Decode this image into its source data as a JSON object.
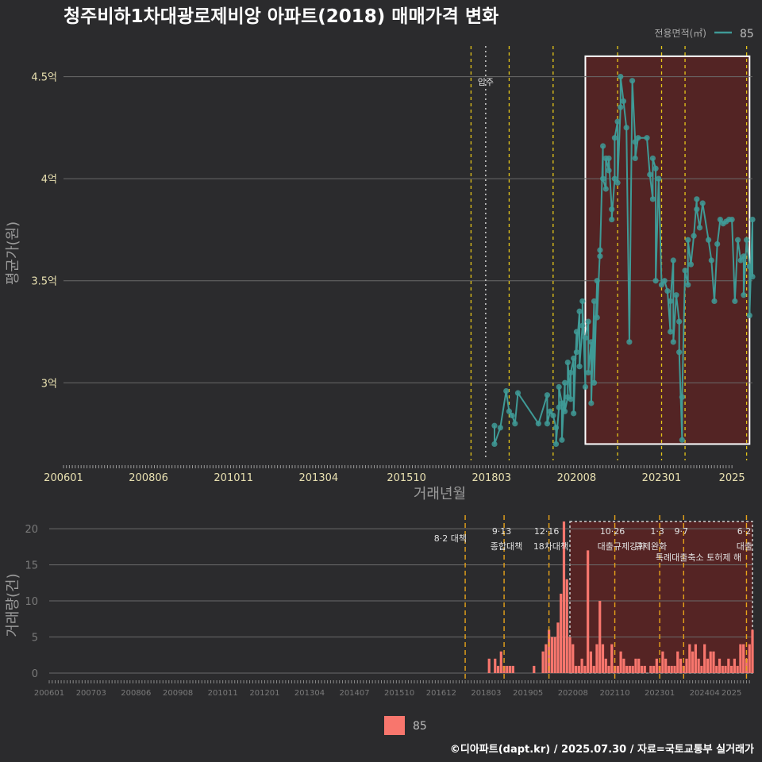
{
  "title": "청주비하1차대광로제비앙 아파트(2018) 매매가격 변화",
  "legend_top": {
    "label": "전용면적(㎡)",
    "value": "85"
  },
  "legend_bottom": {
    "value": "85"
  },
  "footer": "©디아파트(dapt.kr) / 2025.07.30 / 자료=국토교통부 실거래가",
  "colors": {
    "background": "#2b2b2d",
    "series": "#3f9a96",
    "bar": "#f8766d",
    "highlight_fill": "#5a2323",
    "policy_line": "#e6c619",
    "policy_line_bottom": "#e8a319"
  },
  "chart_data": [
    {
      "type": "line",
      "id": "price",
      "xlabel": "거래년월",
      "ylabel": "평균가(원)",
      "ylim": [
        2.62,
        4.65
      ],
      "y_ticks": [
        {
          "value": 3.0,
          "label": "3억"
        },
        {
          "value": 3.5,
          "label": "3.5억"
        },
        {
          "value": 4.0,
          "label": "4억"
        },
        {
          "value": 4.5,
          "label": "4.5억"
        }
      ],
      "x_ticks": [
        "200601",
        "200806",
        "201011",
        "201304",
        "201510",
        "201803",
        "202008",
        "202301",
        "2025"
      ],
      "x_range": [
        "2006-01",
        "2025-08"
      ],
      "policy_lines": [
        "2017-08",
        "2018-09",
        "2019-12",
        "2021-10",
        "2023-01",
        "2023-09",
        "2025-06"
      ],
      "move_in": {
        "date": "2018-01",
        "label": "입주"
      },
      "highlight": {
        "start": "2020-11",
        "end": "2025-07",
        "ymin": 2.7,
        "ymax": 4.6
      },
      "series": [
        {
          "name": "85",
          "points": [
            [
              "2018-04",
              2.79
            ],
            [
              "2018-04",
              2.7
            ],
            [
              "2018-06",
              2.78
            ],
            [
              "2018-08",
              2.96
            ],
            [
              "2018-09",
              2.86
            ],
            [
              "2018-10",
              2.84
            ],
            [
              "2018-11",
              2.8
            ],
            [
              "2018-12",
              2.95
            ],
            [
              "2019-07",
              2.8
            ],
            [
              "2019-10",
              2.94
            ],
            [
              "2019-10",
              2.8
            ],
            [
              "2019-11",
              2.86
            ],
            [
              "2019-12",
              2.84
            ],
            [
              "2020-01",
              2.78
            ],
            [
              "2020-01",
              2.7
            ],
            [
              "2020-02",
              2.88
            ],
            [
              "2020-02",
              2.98
            ],
            [
              "2020-03",
              2.9
            ],
            [
              "2020-03",
              2.72
            ],
            [
              "2020-04",
              3.0
            ],
            [
              "2020-04",
              2.86
            ],
            [
              "2020-05",
              2.93
            ],
            [
              "2020-05",
              3.1
            ],
            [
              "2020-06",
              2.92
            ],
            [
              "2020-06",
              3.05
            ],
            [
              "2020-07",
              3.12
            ],
            [
              "2020-07",
              2.85
            ],
            [
              "2020-08",
              3.25
            ],
            [
              "2020-08",
              3.15
            ],
            [
              "2020-09",
              3.35
            ],
            [
              "2020-09",
              3.08
            ],
            [
              "2020-10",
              3.28
            ],
            [
              "2020-10",
              3.4
            ],
            [
              "2020-11",
              2.98
            ],
            [
              "2020-11",
              3.22
            ],
            [
              "2020-12",
              3.3
            ],
            [
              "2020-12",
              3.05
            ],
            [
              "2021-01",
              3.2
            ],
            [
              "2021-01",
              2.9
            ],
            [
              "2021-02",
              3.4
            ],
            [
              "2021-02",
              3.0
            ],
            [
              "2021-03",
              3.5
            ],
            [
              "2021-03",
              3.32
            ],
            [
              "2021-04",
              3.65
            ],
            [
              "2021-04",
              3.62
            ],
            [
              "2021-05",
              4.16
            ],
            [
              "2021-05",
              4.0
            ],
            [
              "2021-06",
              3.95
            ],
            [
              "2021-06",
              4.1
            ],
            [
              "2021-07",
              4.04
            ],
            [
              "2021-07",
              4.1
            ],
            [
              "2021-08",
              3.85
            ],
            [
              "2021-08",
              3.8
            ],
            [
              "2021-09",
              4.0
            ],
            [
              "2021-09",
              4.2
            ],
            [
              "2021-10",
              4.28
            ],
            [
              "2021-10",
              3.98
            ],
            [
              "2021-11",
              4.35
            ],
            [
              "2021-11",
              4.5
            ],
            [
              "2021-12",
              4.38
            ],
            [
              "2022-01",
              4.25
            ],
            [
              "2022-02",
              3.2
            ],
            [
              "2022-03",
              4.48
            ],
            [
              "2022-04",
              4.18
            ],
            [
              "2022-04",
              4.1
            ],
            [
              "2022-05",
              4.2
            ],
            [
              "2022-08",
              4.2
            ],
            [
              "2022-09",
              4.02
            ],
            [
              "2022-10",
              3.9
            ],
            [
              "2022-10",
              4.1
            ],
            [
              "2022-11",
              4.05
            ],
            [
              "2022-11",
              3.5
            ],
            [
              "2022-12",
              4.0
            ],
            [
              "2023-01",
              3.48
            ],
            [
              "2023-02",
              3.5
            ],
            [
              "2023-03",
              3.45
            ],
            [
              "2023-04",
              3.25
            ],
            [
              "2023-04",
              3.4
            ],
            [
              "2023-05",
              3.6
            ],
            [
              "2023-05",
              3.2
            ],
            [
              "2023-06",
              3.43
            ],
            [
              "2023-07",
              3.3
            ],
            [
              "2023-07",
              3.15
            ],
            [
              "2023-08",
              2.72
            ],
            [
              "2023-08",
              2.93
            ],
            [
              "2023-09",
              3.55
            ],
            [
              "2023-10",
              3.48
            ],
            [
              "2023-10",
              3.7
            ],
            [
              "2023-11",
              3.58
            ],
            [
              "2023-12",
              3.72
            ],
            [
              "2024-01",
              3.9
            ],
            [
              "2024-01",
              3.85
            ],
            [
              "2024-02",
              3.76
            ],
            [
              "2024-03",
              3.88
            ],
            [
              "2024-05",
              3.7
            ],
            [
              "2024-06",
              3.6
            ],
            [
              "2024-07",
              3.4
            ],
            [
              "2024-08",
              3.68
            ],
            [
              "2024-09",
              3.8
            ],
            [
              "2024-10",
              3.78
            ],
            [
              "2024-11",
              3.79
            ],
            [
              "2024-12",
              3.8
            ],
            [
              "2025-01",
              3.8
            ],
            [
              "2025-02",
              3.4
            ],
            [
              "2025-03",
              3.7
            ],
            [
              "2025-04",
              3.6
            ],
            [
              "2025-05",
              3.62
            ],
            [
              "2025-05",
              3.43
            ],
            [
              "2025-06",
              3.7
            ],
            [
              "2025-07",
              3.57
            ],
            [
              "2025-07",
              3.33
            ],
            [
              "2025-08",
              3.8
            ],
            [
              "2025-08",
              3.52
            ]
          ]
        }
      ]
    },
    {
      "type": "bar",
      "id": "volume",
      "ylabel": "거래량(건)",
      "ylim": [
        0,
        21
      ],
      "y_ticks": [
        0,
        5,
        10,
        15,
        20
      ],
      "x_ticks": [
        "200601",
        "200703",
        "200806",
        "200908",
        "201011",
        "201201",
        "201304",
        "201407",
        "201510",
        "201612",
        "201803",
        "201905",
        "202008",
        "202110",
        "202301",
        "202404",
        "2025"
      ],
      "x_range": [
        "2006-01",
        "2025-08"
      ],
      "highlight": {
        "start": "2020-07",
        "end": "2025-08",
        "ymax": 21
      },
      "policy_lines": [
        {
          "date": "2017-08",
          "date_label": "",
          "text": "8·2 대책"
        },
        {
          "date": "2018-09",
          "date_label": "9·13",
          "text": "종합대책"
        },
        {
          "date": "2019-12",
          "date_label": "12·16",
          "text": "18차대책"
        },
        {
          "date": "2021-10",
          "date_label": "10·26",
          "text": "대출규제강화"
        },
        {
          "date": "2023-01",
          "date_label": "1·3",
          "text": "규제완화"
        },
        {
          "date": "2023-09",
          "date_label": "9·7",
          "text": "특례대출축소 토허제 해"
        },
        {
          "date": "2025-06",
          "date_label": "6·2",
          "text": "대출"
        }
      ],
      "series": [
        {
          "name": "85",
          "values": [
            [
              "2018-04",
              2
            ],
            [
              "2018-06",
              2
            ],
            [
              "2018-07",
              1
            ],
            [
              "2018-08",
              3
            ],
            [
              "2018-09",
              1
            ],
            [
              "2018-10",
              1
            ],
            [
              "2018-11",
              1
            ],
            [
              "2018-12",
              1
            ],
            [
              "2019-07",
              1
            ],
            [
              "2019-10",
              3
            ],
            [
              "2019-11",
              4
            ],
            [
              "2019-12",
              6
            ],
            [
              "2020-01",
              5
            ],
            [
              "2020-02",
              5
            ],
            [
              "2020-03",
              7
            ],
            [
              "2020-04",
              11
            ],
            [
              "2020-05",
              21
            ],
            [
              "2020-06",
              13
            ],
            [
              "2020-07",
              5
            ],
            [
              "2020-08",
              4
            ],
            [
              "2020-09",
              1
            ],
            [
              "2020-10",
              1
            ],
            [
              "2020-11",
              2
            ],
            [
              "2020-12",
              1
            ],
            [
              "2021-01",
              17
            ],
            [
              "2021-02",
              3
            ],
            [
              "2021-03",
              1
            ],
            [
              "2021-04",
              4
            ],
            [
              "2021-05",
              10
            ],
            [
              "2021-06",
              4
            ],
            [
              "2021-07",
              2
            ],
            [
              "2021-08",
              1
            ],
            [
              "2021-09",
              4
            ],
            [
              "2021-10",
              1
            ],
            [
              "2021-11",
              1
            ],
            [
              "2021-12",
              3
            ],
            [
              "2022-01",
              2
            ],
            [
              "2022-02",
              1
            ],
            [
              "2022-03",
              1
            ],
            [
              "2022-04",
              1
            ],
            [
              "2022-05",
              2
            ],
            [
              "2022-06",
              2
            ],
            [
              "2022-07",
              1
            ],
            [
              "2022-08",
              1
            ],
            [
              "2022-10",
              1
            ],
            [
              "2022-11",
              1
            ],
            [
              "2022-12",
              2
            ],
            [
              "2023-01",
              1
            ],
            [
              "2023-02",
              3
            ],
            [
              "2023-03",
              2
            ],
            [
              "2023-04",
              1
            ],
            [
              "2023-05",
              1
            ],
            [
              "2023-06",
              1
            ],
            [
              "2023-07",
              3
            ],
            [
              "2023-08",
              2
            ],
            [
              "2023-09",
              1
            ],
            [
              "2023-10",
              2
            ],
            [
              "2023-11",
              4
            ],
            [
              "2023-12",
              3
            ],
            [
              "2024-01",
              4
            ],
            [
              "2024-02",
              2
            ],
            [
              "2024-03",
              1
            ],
            [
              "2024-04",
              4
            ],
            [
              "2024-05",
              2
            ],
            [
              "2024-06",
              3
            ],
            [
              "2024-07",
              3
            ],
            [
              "2024-08",
              1
            ],
            [
              "2024-09",
              2
            ],
            [
              "2024-10",
              1
            ],
            [
              "2024-11",
              1
            ],
            [
              "2024-12",
              2
            ],
            [
              "2025-01",
              1
            ],
            [
              "2025-02",
              2
            ],
            [
              "2025-03",
              1
            ],
            [
              "2025-04",
              4
            ],
            [
              "2025-05",
              4
            ],
            [
              "2025-06",
              2
            ],
            [
              "2025-07",
              4
            ],
            [
              "2025-08",
              6
            ]
          ]
        }
      ]
    }
  ]
}
